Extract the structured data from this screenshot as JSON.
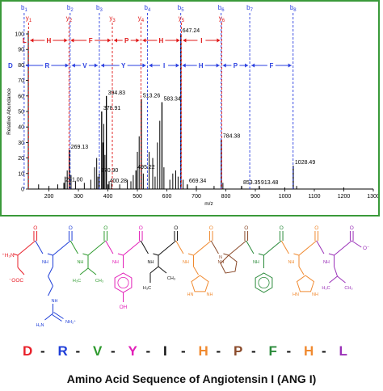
{
  "chart_data": {
    "type": "bar",
    "xlabel": "m/z",
    "ylabel": "Relative Abundance",
    "xlim": [
      130,
      1300
    ],
    "ylim": [
      0,
      100
    ],
    "xticks": [
      200,
      300,
      400,
      500,
      600,
      700,
      800,
      900,
      1000,
      1100,
      1200,
      1300
    ],
    "yticks": [
      0,
      10,
      20,
      30,
      40,
      50,
      60,
      70,
      80,
      90,
      100
    ],
    "peaks": [
      {
        "x": 251.0,
        "y": 4,
        "label": "251.00"
      },
      {
        "x": 269.13,
        "y": 25,
        "label": "269.13"
      },
      {
        "x": 370.9,
        "y": 10,
        "label": "370.90"
      },
      {
        "x": 378.91,
        "y": 50,
        "label": "378.91"
      },
      {
        "x": 394.83,
        "y": 60,
        "label": "394.83"
      },
      {
        "x": 400.28,
        "y": 3,
        "label": "400.28"
      },
      {
        "x": 495.22,
        "y": 12,
        "label": "495.22"
      },
      {
        "x": 513.26,
        "y": 58,
        "label": "513.26"
      },
      {
        "x": 583.34,
        "y": 56,
        "label": "583.34"
      },
      {
        "x": 647.24,
        "y": 100,
        "label": "647.24"
      },
      {
        "x": 669.34,
        "y": 3,
        "label": "669.34"
      },
      {
        "x": 784.38,
        "y": 32,
        "label": "784.38"
      },
      {
        "x": 853.35,
        "y": 2,
        "label": "853.35"
      },
      {
        "x": 913.48,
        "y": 2,
        "label": "913.48"
      },
      {
        "x": 1028.49,
        "y": 15,
        "label": "1028.49"
      }
    ],
    "minor_peaks": [
      {
        "x": 165,
        "y": 3
      },
      {
        "x": 200,
        "y": 2
      },
      {
        "x": 230,
        "y": 3
      },
      {
        "x": 255,
        "y": 8
      },
      {
        "x": 262,
        "y": 12
      },
      {
        "x": 275,
        "y": 9
      },
      {
        "x": 290,
        "y": 5
      },
      {
        "x": 320,
        "y": 4
      },
      {
        "x": 342,
        "y": 6
      },
      {
        "x": 355,
        "y": 14
      },
      {
        "x": 362,
        "y": 20
      },
      {
        "x": 366,
        "y": 8
      },
      {
        "x": 383,
        "y": 30
      },
      {
        "x": 386,
        "y": 42
      },
      {
        "x": 390,
        "y": 22
      },
      {
        "x": 404,
        "y": 5
      },
      {
        "x": 412,
        "y": 4
      },
      {
        "x": 440,
        "y": 3
      },
      {
        "x": 466,
        "y": 6
      },
      {
        "x": 478,
        "y": 5
      },
      {
        "x": 486,
        "y": 9
      },
      {
        "x": 500,
        "y": 24
      },
      {
        "x": 506,
        "y": 34
      },
      {
        "x": 520,
        "y": 10
      },
      {
        "x": 540,
        "y": 24
      },
      {
        "x": 552,
        "y": 20
      },
      {
        "x": 560,
        "y": 8
      },
      {
        "x": 568,
        "y": 30
      },
      {
        "x": 576,
        "y": 44
      },
      {
        "x": 590,
        "y": 14
      },
      {
        "x": 610,
        "y": 6
      },
      {
        "x": 620,
        "y": 10
      },
      {
        "x": 630,
        "y": 12
      },
      {
        "x": 638,
        "y": 8
      },
      {
        "x": 655,
        "y": 6
      },
      {
        "x": 700,
        "y": 2
      },
      {
        "x": 760,
        "y": 2
      },
      {
        "x": 790,
        "y": 4
      },
      {
        "x": 1000,
        "y": 1
      },
      {
        "x": 1040,
        "y": 2
      },
      {
        "x": 1200,
        "y": 1
      }
    ],
    "b_ions": [
      {
        "label": "b",
        "sub": "1",
        "x": 116
      },
      {
        "label": "b",
        "sub": "2",
        "x": 272
      },
      {
        "label": "b",
        "sub": "3",
        "x": 371
      },
      {
        "label": "b",
        "sub": "4",
        "x": 534
      },
      {
        "label": "b",
        "sub": "5",
        "x": 647
      },
      {
        "label": "b",
        "sub": "6",
        "x": 784
      },
      {
        "label": "b",
        "sub": "7",
        "x": 881
      },
      {
        "label": "b",
        "sub": "8",
        "x": 1028
      }
    ],
    "y_ions": [
      {
        "label": "y",
        "sub": "1",
        "x": 131
      },
      {
        "label": "y",
        "sub": "2",
        "x": 268
      },
      {
        "label": "y",
        "sub": "3",
        "x": 415
      },
      {
        "label": "y",
        "sub": "4",
        "x": 512
      },
      {
        "label": "y",
        "sub": "5",
        "x": 649
      },
      {
        "label": "y",
        "sub": "6",
        "x": 786
      }
    ],
    "y_ladder": [
      {
        "res": "L",
        "x1": 131,
        "x2": 131
      },
      {
        "res": "H",
        "x1": 131,
        "x2": 268
      },
      {
        "res": "F",
        "x1": 268,
        "x2": 415
      },
      {
        "res": "P",
        "x1": 415,
        "x2": 512
      },
      {
        "res": "H",
        "x1": 512,
        "x2": 649
      },
      {
        "res": "I",
        "x1": 649,
        "x2": 786
      }
    ],
    "b_ladder_start": "D",
    "b_ladder": [
      {
        "res": "R",
        "x1": 116,
        "x2": 272
      },
      {
        "res": "V",
        "x1": 272,
        "x2": 371
      },
      {
        "res": "Y",
        "x1": 371,
        "x2": 534
      },
      {
        "res": "I",
        "x1": 534,
        "x2": 647
      },
      {
        "res": "H",
        "x1": 647,
        "x2": 784
      },
      {
        "res": "P",
        "x1": 784,
        "x2": 881
      },
      {
        "res": "F",
        "x1": 881,
        "x2": 1028
      }
    ]
  },
  "structure": {
    "n_term": "⁺H₃N",
    "asp_side": "⁻OOC",
    "guan_nh2": "NH₂⁺",
    "guan_nh2b": "H₂N",
    "nh": "NH",
    "o": "O",
    "oh": "OH",
    "ch3": "CH₃",
    "h3c": "H₃C",
    "c_term": "O⁻",
    "hn": "HN",
    "n": "N"
  },
  "sequence": [
    {
      "res": "D",
      "color": "#e8202a"
    },
    {
      "res": "R",
      "color": "#1f3fd8"
    },
    {
      "res": "V",
      "color": "#2e9a2e"
    },
    {
      "res": "Y",
      "color": "#e21fb8"
    },
    {
      "res": "I",
      "color": "#111111"
    },
    {
      "res": "H",
      "color": "#f08a30"
    },
    {
      "res": "P",
      "color": "#8a4a2a"
    },
    {
      "res": "F",
      "color": "#2a8a3a"
    },
    {
      "res": "H",
      "color": "#f08a30"
    },
    {
      "res": "L",
      "color": "#9a30b8"
    }
  ],
  "seq_separator": "-",
  "caption": "Amino Acid Sequence of Angiotensin I (ANG I)"
}
